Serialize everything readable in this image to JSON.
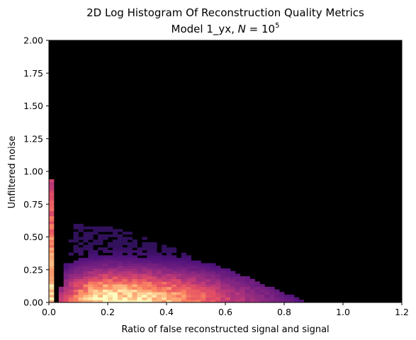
{
  "chart_data": {
    "type": "heatmap",
    "title": "2D Log Histogram Of Reconstruction Quality Metrics",
    "subtitle": "Model 1_yx, N = 10^5",
    "subtitle_parts": {
      "prefix": "Model 1_yx, ",
      "var": "N",
      "eq": " = 10",
      "exp": "5"
    },
    "xlabel": "Ratio of false reconstructed signal and signal",
    "ylabel": "Unfiltered noise",
    "xlim": [
      0.0,
      1.2
    ],
    "ylim": [
      0.0,
      2.0
    ],
    "xticks": [
      "0.0",
      "0.2",
      "0.4",
      "0.6",
      "0.8",
      "1.0",
      "1.2"
    ],
    "yticks": [
      "0.00",
      "0.25",
      "0.50",
      "0.75",
      "1.00",
      "1.25",
      "1.50",
      "1.75",
      "2.00"
    ],
    "colormap": "magma",
    "color_scale": "log",
    "background": "#000000",
    "bins": {
      "x": 72,
      "y": 100
    },
    "density_model": {
      "description": "approximate log-density of counts per bin",
      "peak_x": 0.2,
      "peak_y": 0.0,
      "strip_x": [
        0.0,
        0.02
      ],
      "cutoff_y_at_zero": 0.6,
      "cutoff_x_at_zero": 0.88
    }
  }
}
